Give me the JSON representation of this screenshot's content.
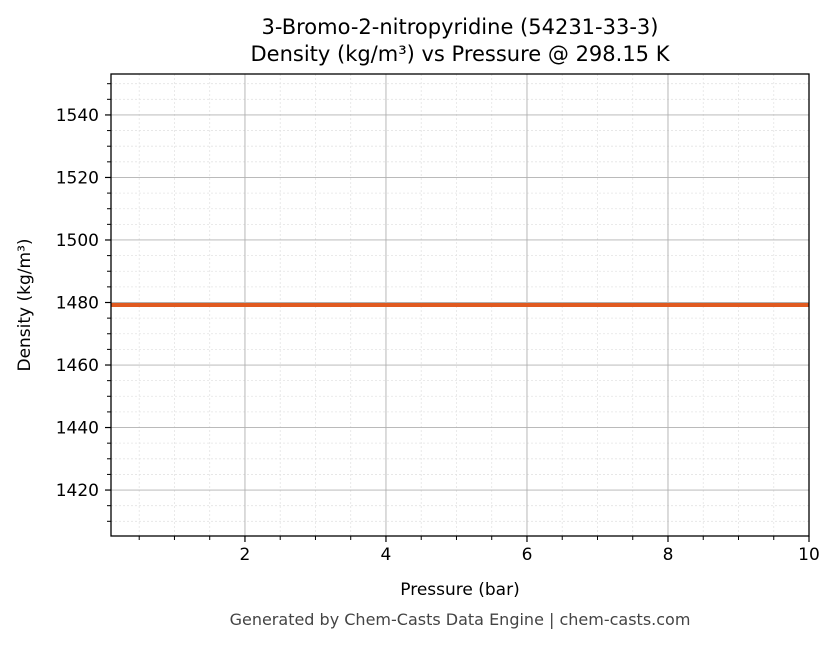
{
  "chart_data": {
    "type": "line",
    "title": "3-Bromo-2-nitropyridine (54231-33-3)",
    "subtitle": "Density (kg/m³) vs Pressure @ 298.15 K",
    "xlabel": "Pressure (bar)",
    "ylabel": "Density (kg/m³)",
    "xlim": [
      0.1,
      10
    ],
    "ylim": [
      1405.3,
      1553.1
    ],
    "x_ticks": [
      2,
      4,
      6,
      8,
      10
    ],
    "y_ticks": [
      1420,
      1440,
      1460,
      1480,
      1500,
      1520,
      1540
    ],
    "grid": true,
    "series": [
      {
        "color": "#e05a20",
        "x": [
          0.1,
          10
        ],
        "y": [
          1479.2,
          1479.2
        ]
      }
    ]
  },
  "footer": "Generated by Chem-Casts Data Engine | chem-casts.com"
}
